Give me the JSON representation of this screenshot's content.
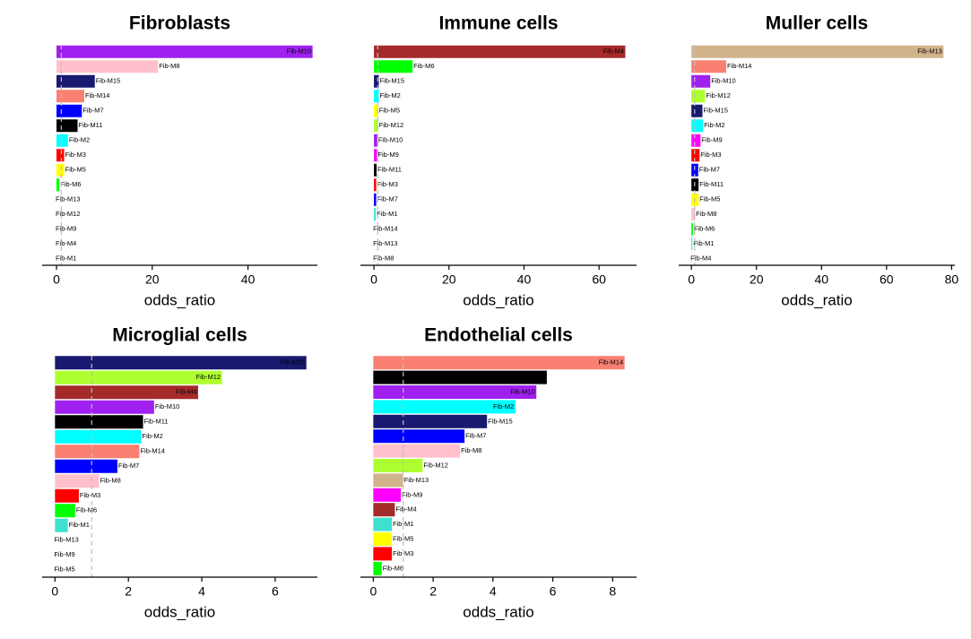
{
  "chart_data": [
    {
      "type": "bar",
      "title": "Fibroblasts",
      "xlabel": "odds_ratio",
      "xlim": [
        -3,
        54.5
      ],
      "xticks": [
        0,
        20,
        40
      ],
      "ref_line": 1,
      "bars": [
        {
          "label": "Fib-M10",
          "value": 53.5,
          "color": "#A020F0",
          "label_inside": true
        },
        {
          "label": "Fib-M8",
          "value": 21.2,
          "color": "#FFC0CB",
          "label_inside": false
        },
        {
          "label": "Fib-M15",
          "value": 8.0,
          "color": "#191970",
          "label_inside": false
        },
        {
          "label": "Fib-M14",
          "value": 5.8,
          "color": "#FA8072",
          "label_inside": false
        },
        {
          "label": "Fib-M7",
          "value": 5.3,
          "color": "#0000FF",
          "label_inside": false
        },
        {
          "label": "Fib-M11",
          "value": 4.4,
          "color": "#000000",
          "label_inside": false
        },
        {
          "label": "Fib-M2",
          "value": 2.4,
          "color": "#00FFFF",
          "label_inside": false
        },
        {
          "label": "Fib-M3",
          "value": 1.6,
          "color": "#FF0000",
          "label_inside": false
        },
        {
          "label": "Fib-M5",
          "value": 1.6,
          "color": "#FFFF00",
          "label_inside": false
        },
        {
          "label": "Fib-M6",
          "value": 0.6,
          "color": "#00FF00",
          "label_inside": false
        },
        {
          "label": "Fib-M13",
          "value": 0,
          "color": "#D2B48C",
          "label_inside": false
        },
        {
          "label": "Fib-M12",
          "value": 0,
          "color": "#ADFF2F",
          "label_inside": false
        },
        {
          "label": "Fib-M9",
          "value": 0,
          "color": "#FF00FF",
          "label_inside": false
        },
        {
          "label": "Fib-M4",
          "value": 0,
          "color": "#A52A2A",
          "label_inside": false
        },
        {
          "label": "Fib-M1",
          "value": 0,
          "color": "#40E0D0",
          "label_inside": false
        }
      ]
    },
    {
      "type": "bar",
      "title": "Immune cells",
      "xlabel": "odds_ratio",
      "xlim": [
        -3.6,
        70
      ],
      "xticks": [
        0,
        20,
        40,
        60
      ],
      "ref_line": 1,
      "bars": [
        {
          "label": "Fib-M4",
          "value": 67,
          "color": "#A52A2A",
          "label_inside": true
        },
        {
          "label": "Fib-M6",
          "value": 10.3,
          "color": "#00FF00",
          "label_inside": false
        },
        {
          "label": "Fib-M15",
          "value": 1.3,
          "color": "#191970",
          "label_inside": false
        },
        {
          "label": "Fib-M2",
          "value": 1.3,
          "color": "#00FFFF",
          "label_inside": false
        },
        {
          "label": "Fib-M5",
          "value": 1.1,
          "color": "#FFFF00",
          "label_inside": false
        },
        {
          "label": "Fib-M12",
          "value": 1.1,
          "color": "#ADFF2F",
          "label_inside": false
        },
        {
          "label": "Fib-M10",
          "value": 0.9,
          "color": "#A020F0",
          "label_inside": false
        },
        {
          "label": "Fib-M9",
          "value": 0.8,
          "color": "#FF00FF",
          "label_inside": false
        },
        {
          "label": "Fib-M11",
          "value": 0.7,
          "color": "#000000",
          "label_inside": false
        },
        {
          "label": "Fib-M3",
          "value": 0.6,
          "color": "#FF0000",
          "label_inside": false
        },
        {
          "label": "Fib-M7",
          "value": 0.6,
          "color": "#0000FF",
          "label_inside": false
        },
        {
          "label": "Fib-M1",
          "value": 0.5,
          "color": "#40E0D0",
          "label_inside": false
        },
        {
          "label": "Fib-M14",
          "value": 0,
          "color": "#FA8072",
          "label_inside": false
        },
        {
          "label": "Fib-M13",
          "value": 0,
          "color": "#D2B48C",
          "label_inside": false
        },
        {
          "label": "Fib-M8",
          "value": 0,
          "color": "#FFC0CB",
          "label_inside": false
        }
      ]
    },
    {
      "type": "bar",
      "title": "Muller cells",
      "xlabel": "odds_ratio",
      "xlim": [
        -3.9,
        81
      ],
      "xticks": [
        0,
        20,
        40,
        60,
        80
      ],
      "ref_line": 1,
      "bars": [
        {
          "label": "Fib-M13",
          "value": 77.5,
          "color": "#D2B48C",
          "label_inside": true
        },
        {
          "label": "Fib-M14",
          "value": 10.7,
          "color": "#FA8072",
          "label_inside": false
        },
        {
          "label": "Fib-M10",
          "value": 5.8,
          "color": "#A020F0",
          "label_inside": false
        },
        {
          "label": "Fib-M12",
          "value": 4.2,
          "color": "#ADFF2F",
          "label_inside": false
        },
        {
          "label": "Fib-M15",
          "value": 3.4,
          "color": "#191970",
          "label_inside": false
        },
        {
          "label": "Fib-M2",
          "value": 3.6,
          "color": "#00FFFF",
          "label_inside": false
        },
        {
          "label": "Fib-M9",
          "value": 2.8,
          "color": "#FF00FF",
          "label_inside": false
        },
        {
          "label": "Fib-M3",
          "value": 2.5,
          "color": "#FF0000",
          "label_inside": false
        },
        {
          "label": "Fib-M7",
          "value": 2.1,
          "color": "#0000FF",
          "label_inside": false
        },
        {
          "label": "Fib-M11",
          "value": 2.2,
          "color": "#000000",
          "label_inside": false
        },
        {
          "label": "Fib-M5",
          "value": 2.2,
          "color": "#FFFF00",
          "label_inside": false
        },
        {
          "label": "Fib-M8",
          "value": 1.1,
          "color": "#FFC0CB",
          "label_inside": false
        },
        {
          "label": "Fib-M6",
          "value": 0.5,
          "color": "#00FF00",
          "label_inside": false
        },
        {
          "label": "Fib-M1",
          "value": 0.3,
          "color": "#40E0D0",
          "label_inside": false
        },
        {
          "label": "Fib-M4",
          "value": 0,
          "color": "#A52A2A",
          "label_inside": false
        }
      ]
    },
    {
      "type": "bar",
      "title": "Microglial cells",
      "xlabel": "odds_ratio",
      "xlim": [
        -0.35,
        7.15
      ],
      "xticks": [
        0,
        2,
        4,
        6
      ],
      "ref_line": 1,
      "bars": [
        {
          "label": "Fib-M15",
          "value": 6.85,
          "color": "#191970",
          "label_inside": true
        },
        {
          "label": "Fib-M12",
          "value": 4.55,
          "color": "#ADFF2F",
          "label_inside": true
        },
        {
          "label": "Fib-M4",
          "value": 3.9,
          "color": "#A52A2A",
          "label_inside": true
        },
        {
          "label": "Fib-M10",
          "value": 2.7,
          "color": "#A020F0",
          "label_inside": false
        },
        {
          "label": "Fib-M11",
          "value": 2.4,
          "color": "#000000",
          "label_inside": false
        },
        {
          "label": "Fib-M2",
          "value": 2.35,
          "color": "#00FFFF",
          "label_inside": false
        },
        {
          "label": "Fib-M14",
          "value": 2.3,
          "color": "#FA8072",
          "label_inside": false
        },
        {
          "label": "Fib-M7",
          "value": 1.7,
          "color": "#0000FF",
          "label_inside": false
        },
        {
          "label": "Fib-M8",
          "value": 1.2,
          "color": "#FFC0CB",
          "label_inside": false
        },
        {
          "label": "Fib-M3",
          "value": 0.65,
          "color": "#FF0000",
          "label_inside": false
        },
        {
          "label": "Fib-M6",
          "value": 0.55,
          "color": "#00FF00",
          "label_inside": false
        },
        {
          "label": "Fib-M1",
          "value": 0.35,
          "color": "#40E0D0",
          "label_inside": false
        },
        {
          "label": "Fib-M13",
          "value": 0,
          "color": "#D2B48C",
          "label_inside": false
        },
        {
          "label": "Fib-M9",
          "value": 0,
          "color": "#FF00FF",
          "label_inside": false
        },
        {
          "label": "Fib-M5",
          "value": 0,
          "color": "#FFFF00",
          "label_inside": false
        }
      ]
    },
    {
      "type": "bar",
      "title": "Endothelial cells",
      "xlabel": "odds_ratio",
      "xlim": [
        -0.43,
        8.8
      ],
      "xticks": [
        0,
        2,
        4,
        6,
        8
      ],
      "ref_line": 1,
      "bars": [
        {
          "label": "Fib-M14",
          "value": 8.4,
          "color": "#FA8072",
          "label_inside": true
        },
        {
          "label": "Fib-M11",
          "value": 5.8,
          "color": "#000000",
          "label_inside": true
        },
        {
          "label": "Fib-M10",
          "value": 5.45,
          "color": "#A020F0",
          "label_inside": true
        },
        {
          "label": "Fib-M2",
          "value": 4.75,
          "color": "#00FFFF",
          "label_inside": true
        },
        {
          "label": "Fib-M15",
          "value": 3.8,
          "color": "#191970",
          "label_inside": false
        },
        {
          "label": "Fib-M7",
          "value": 3.05,
          "color": "#0000FF",
          "label_inside": false
        },
        {
          "label": "Fib-M8",
          "value": 2.9,
          "color": "#FFC0CB",
          "label_inside": false
        },
        {
          "label": "Fib-M12",
          "value": 1.65,
          "color": "#ADFF2F",
          "label_inside": false
        },
        {
          "label": "Fib-M13",
          "value": 1.0,
          "color": "#D2B48C",
          "label_inside": false
        },
        {
          "label": "Fib-M9",
          "value": 0.92,
          "color": "#FF00FF",
          "label_inside": false
        },
        {
          "label": "Fib-M4",
          "value": 0.72,
          "color": "#A52A2A",
          "label_inside": false
        },
        {
          "label": "Fib-M1",
          "value": 0.62,
          "color": "#40E0D0",
          "label_inside": false
        },
        {
          "label": "Fib-M5",
          "value": 0.62,
          "color": "#FFFF00",
          "label_inside": false
        },
        {
          "label": "Fib-M3",
          "value": 0.62,
          "color": "#FF0000",
          "label_inside": false
        },
        {
          "label": "Fib-M6",
          "value": 0.28,
          "color": "#00FF00",
          "label_inside": false
        }
      ]
    }
  ]
}
